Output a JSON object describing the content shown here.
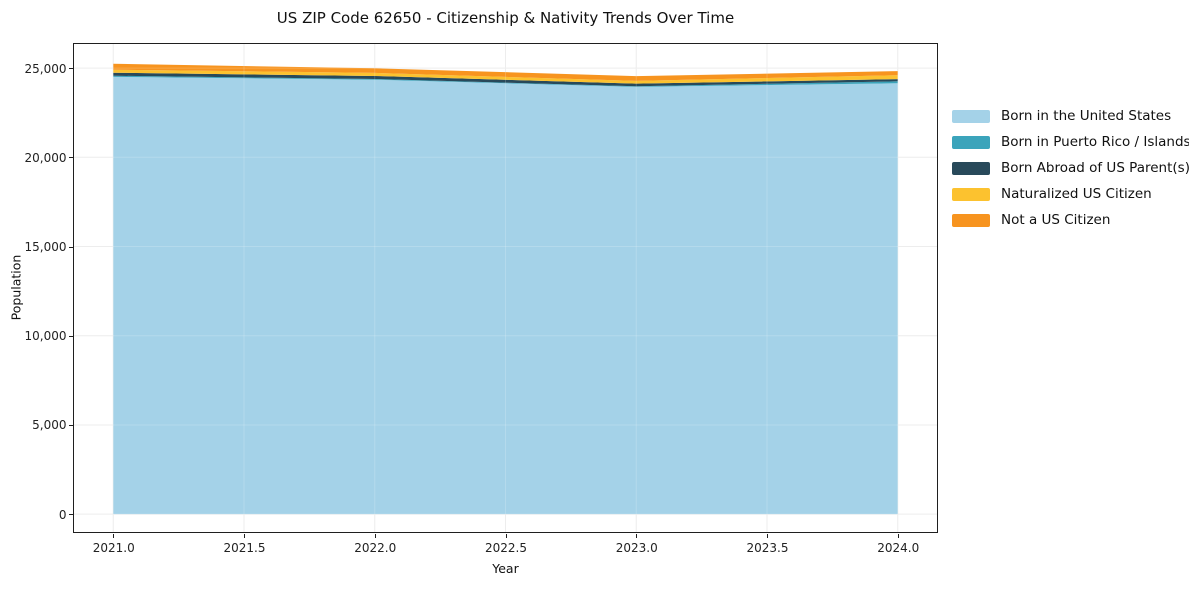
{
  "page": {
    "title": "US ZIP Code 62650 - Citizenship & Nativity Trends Over Time"
  },
  "axes": {
    "x": {
      "label": "Year",
      "tick_labels": [
        "2021.0",
        "2021.5",
        "2022.0",
        "2022.5",
        "2023.0",
        "2023.5",
        "2024.0"
      ],
      "tick_values": [
        2021.0,
        2021.5,
        2022.0,
        2022.5,
        2023.0,
        2023.5,
        2024.0
      ]
    },
    "y": {
      "label": "Population",
      "tick_labels": [
        "0",
        "5,000",
        "10,000",
        "15,000",
        "20,000",
        "25,000"
      ],
      "tick_values": [
        0,
        5000,
        10000,
        15000,
        20000,
        25000
      ]
    }
  },
  "legend": {
    "position": "right-outside"
  },
  "chart_data": {
    "type": "area",
    "stacked": true,
    "title": "US ZIP Code 62650 - Citizenship & Nativity Trends Over Time",
    "xlabel": "Year",
    "ylabel": "Population",
    "x": [
      2021,
      2022,
      2023,
      2024
    ],
    "series": [
      {
        "name": "Born in the United States",
        "color": "#a4d2e8",
        "values": [
          24510,
          24350,
          23950,
          24150
        ]
      },
      {
        "name": "Born in Puerto Rico / Islands",
        "color": "#3ba4bb",
        "values": [
          60,
          40,
          30,
          110
        ]
      },
      {
        "name": "Born Abroad of US Parent(s)",
        "color": "#28495a",
        "values": [
          170,
          170,
          150,
          120
        ]
      },
      {
        "name": "Naturalized US Citizen",
        "color": "#fcc22f",
        "values": [
          170,
          170,
          150,
          220
        ]
      },
      {
        "name": "Not a US Citizen",
        "color": "#f7941f",
        "values": [
          330,
          260,
          270,
          230
        ]
      }
    ],
    "totals": [
      25240,
      24990,
      24550,
      24830
    ],
    "xlim": [
      2020.85,
      2024.15
    ],
    "ylim": [
      -1000,
      26350
    ],
    "grid": true,
    "grid_color": "#e9e9e9",
    "legend_position": "right"
  }
}
